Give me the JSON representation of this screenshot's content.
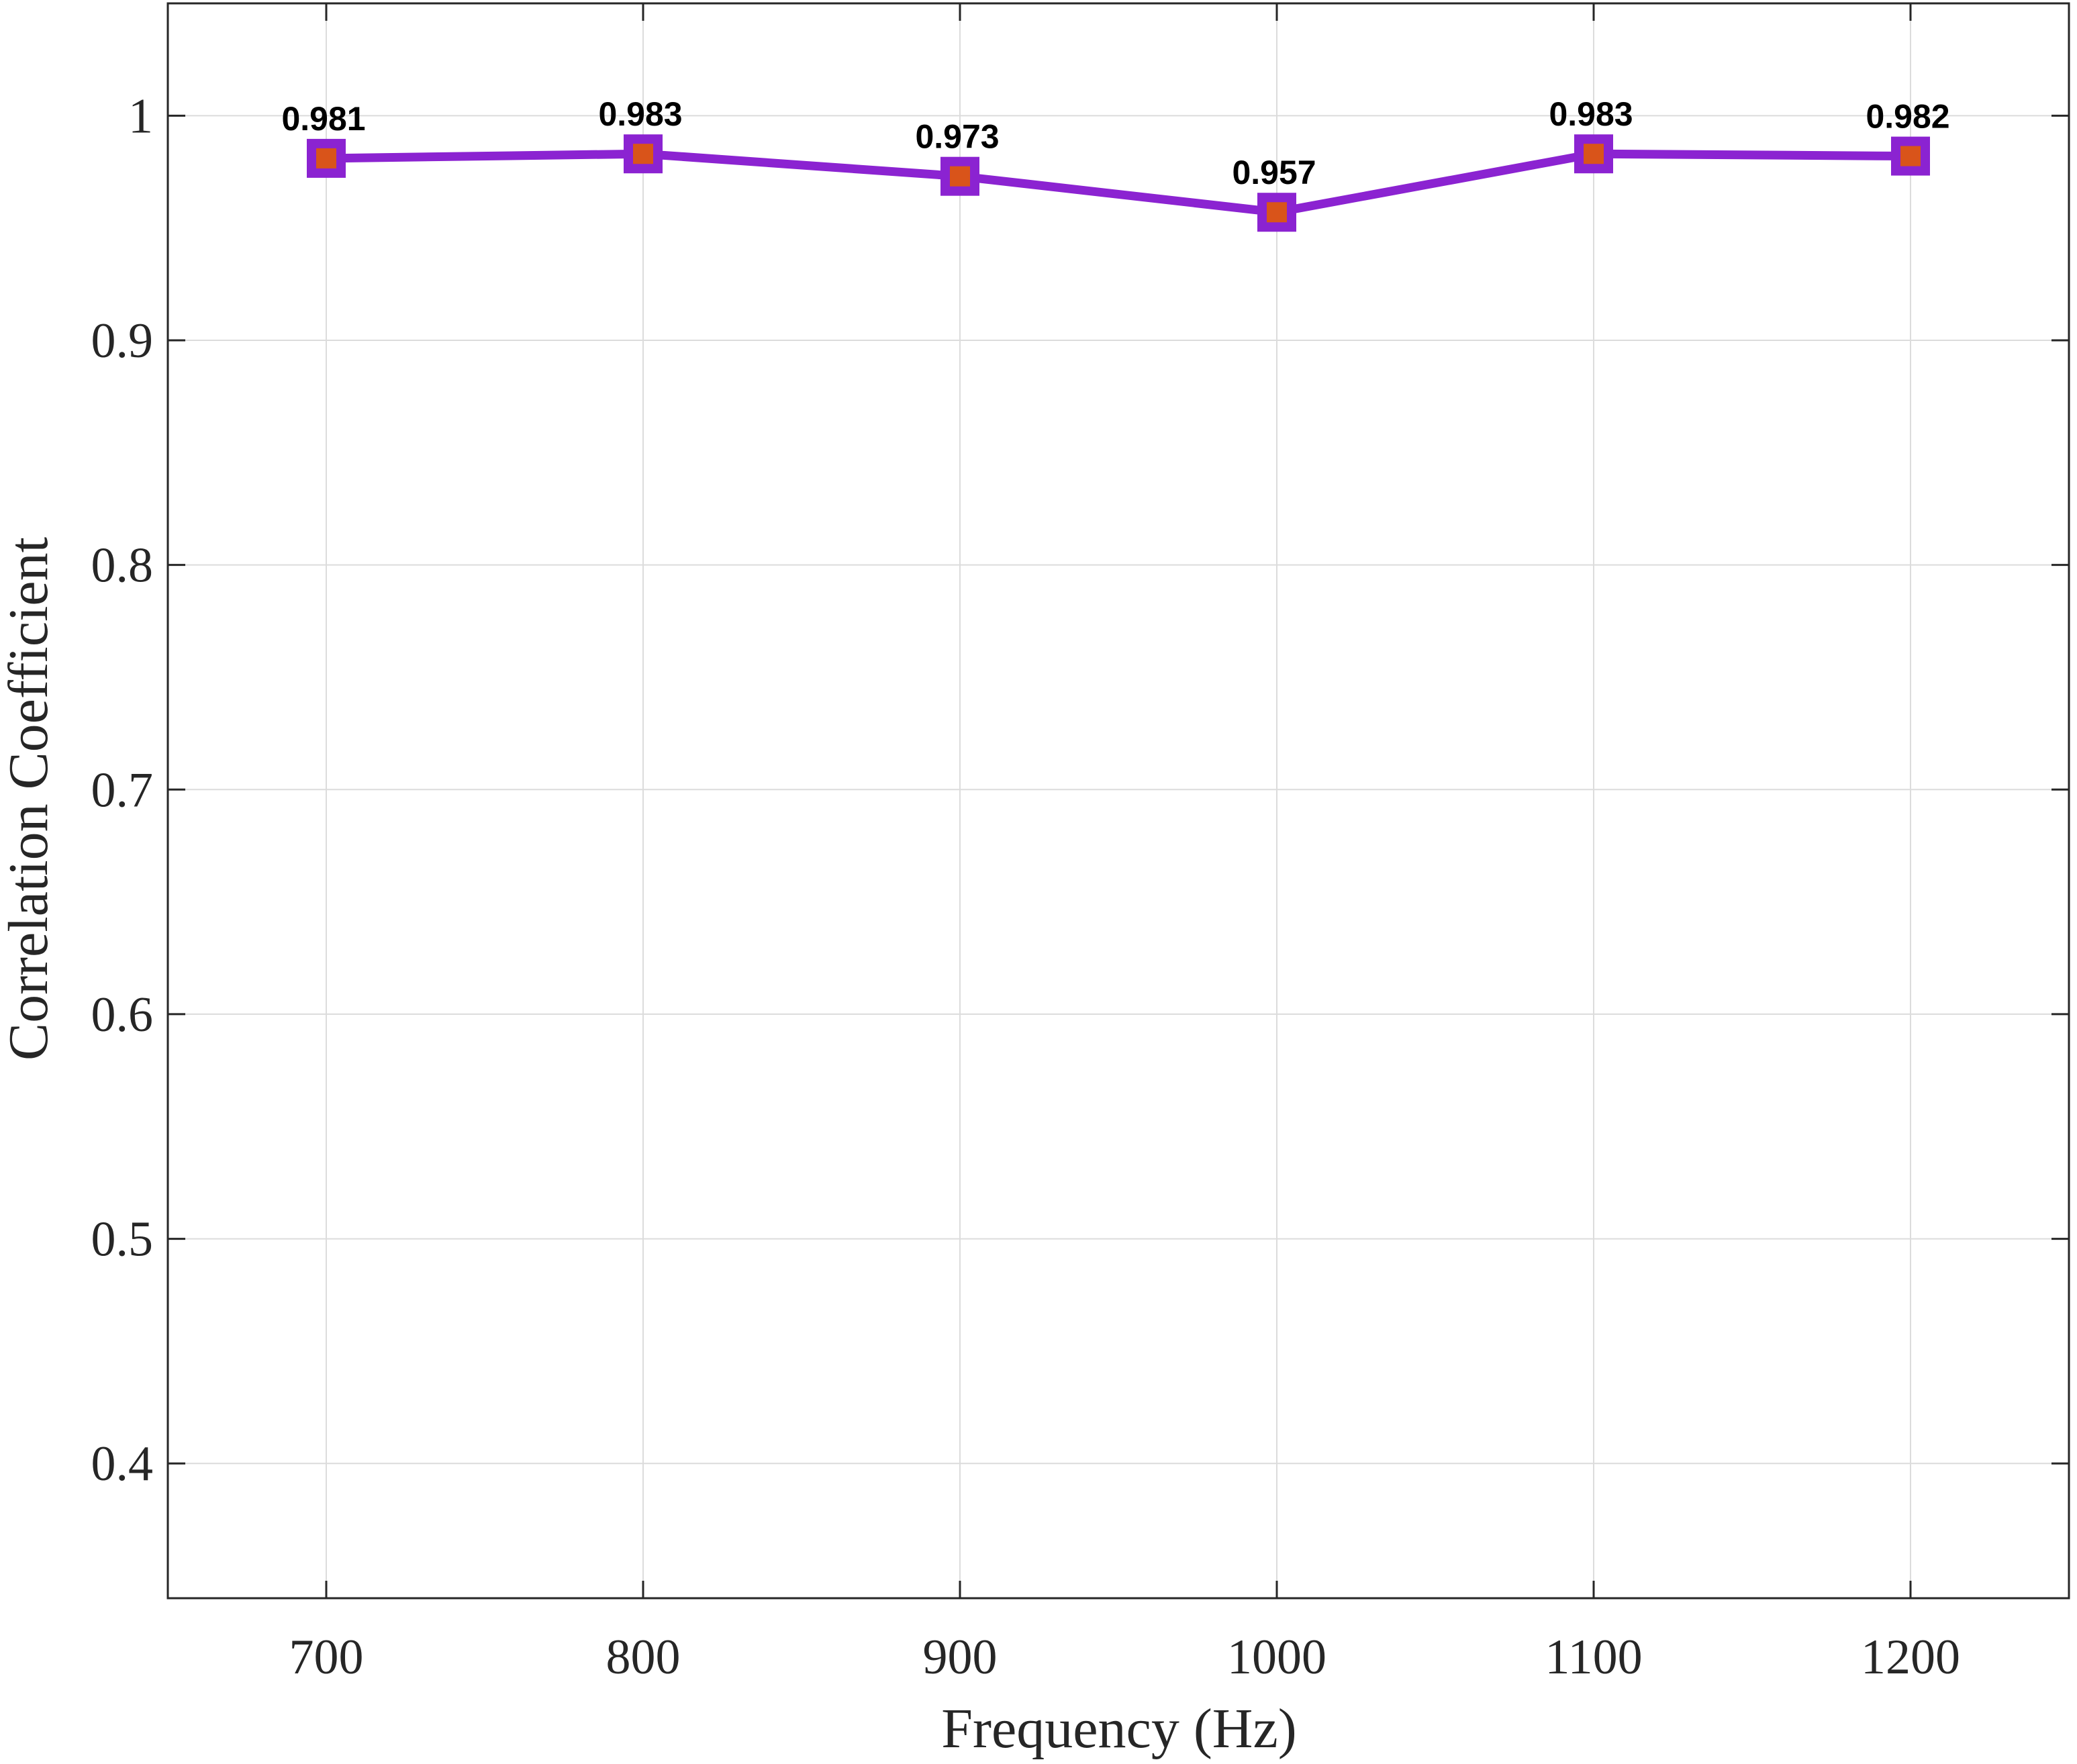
{
  "chart_data": {
    "type": "line",
    "title": "",
    "xlabel": "Frequency (Hz)",
    "ylabel": "Correlation Coefficient",
    "x": [
      700,
      800,
      900,
      1000,
      1100,
      1200
    ],
    "xlim": [
      650,
      1250
    ],
    "ylim": [
      0.34,
      1.05
    ],
    "xticks": [
      700,
      800,
      900,
      1000,
      1100,
      1200
    ],
    "yticks": [
      0.4,
      0.5,
      0.6,
      0.7,
      0.8,
      0.9,
      1
    ],
    "xtick_labels": [
      "700",
      "800",
      "900",
      "1000",
      "1100",
      "1200"
    ],
    "ytick_labels": [
      "0.4",
      "0.5",
      "0.6",
      "0.7",
      "0.8",
      "0.9",
      "1"
    ],
    "grid": true,
    "legend": "none",
    "series": [
      {
        "values": [
          0.981,
          0.983,
          0.973,
          0.957,
          0.983,
          0.982
        ],
        "data_labels": [
          "0.981",
          "0.983",
          "0.973",
          "0.957",
          "0.983",
          "0.982"
        ],
        "line_color": "#8b23d1",
        "marker": "square",
        "marker_edge_color": "#8b23d1",
        "marker_face_color": "#d9541a"
      }
    ]
  }
}
